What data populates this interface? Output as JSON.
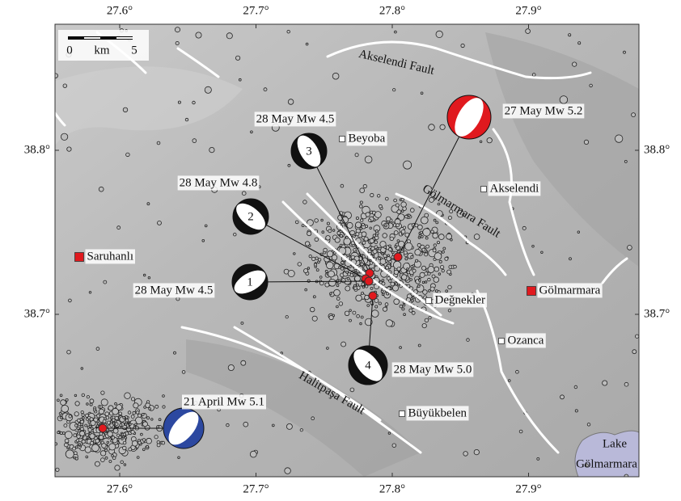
{
  "map": {
    "lon_ticks": [
      {
        "value": 27.6,
        "label": "27.6°"
      },
      {
        "value": 27.7,
        "label": "27.7°"
      },
      {
        "value": 27.8,
        "label": "27.8°"
      },
      {
        "value": 27.9,
        "label": "27.9°"
      }
    ],
    "lat_ticks": [
      {
        "value": 38.8,
        "label": "38.8°"
      },
      {
        "value": 38.7,
        "label": "38.7°"
      }
    ],
    "scale_bar": {
      "start": "0",
      "unit": "km",
      "end": "5"
    },
    "faults": [
      "Akselendi Fault",
      "Gölmarmara Fault",
      "Halitpaşa Fault"
    ],
    "places": [
      "Saruhanlı",
      "Gölmarmara",
      "Beyoba",
      "Akselendi",
      "Değnekler",
      "Ozanca",
      "Büyükbelen"
    ],
    "lake": [
      "Lake",
      "Gölmarmara"
    ],
    "events": [
      {
        "number": "3",
        "label": "28 May Mw 4.5"
      },
      {
        "number": "2",
        "label": "28 May Mw 4.8"
      },
      {
        "number": "1",
        "label": "28 May Mw 4.5"
      },
      {
        "number": "4",
        "label": "28 May Mw 5.0"
      },
      {
        "label": "27 May Mw 5.2"
      },
      {
        "label": "21 April Mw 5.1"
      }
    ]
  }
}
